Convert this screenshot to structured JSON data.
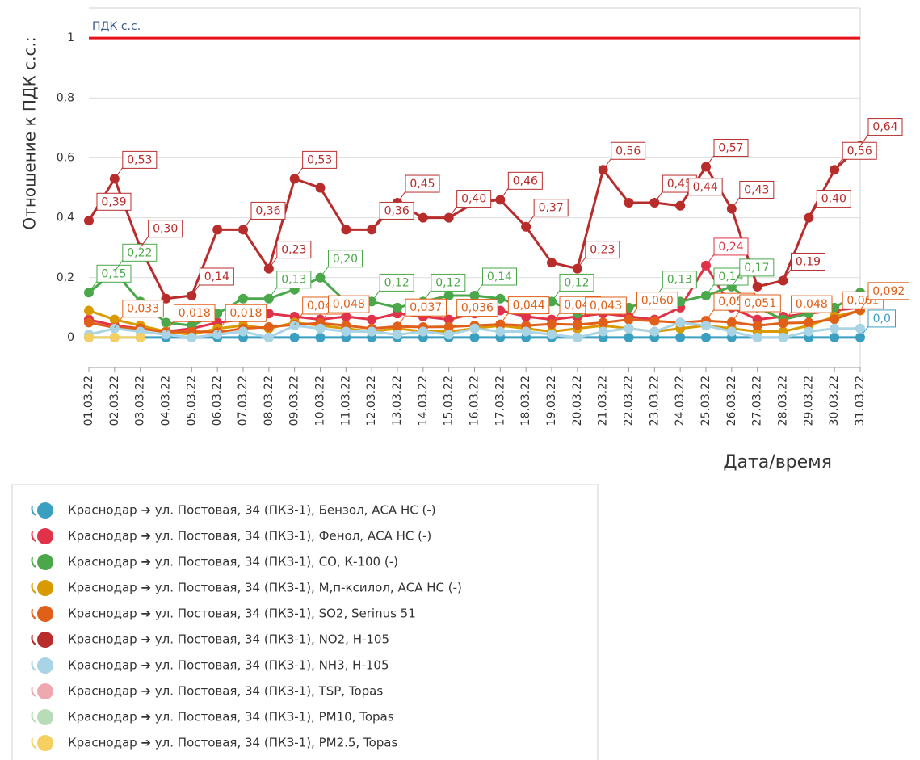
{
  "chart_data": {
    "type": "line",
    "y_label": "Отношение к ПДК с.с.:",
    "x_label": "Дата/время",
    "threshold": {
      "value": 1,
      "label": "ПДК с.с.",
      "color": "#e8101a"
    },
    "categories": [
      "01.03.22",
      "02.03.22",
      "03.03.22",
      "04.03.22",
      "05.03.22",
      "06.03.22",
      "07.03.22",
      "08.03.22",
      "09.03.22",
      "10.03.22",
      "11.03.22",
      "12.03.22",
      "13.03.22",
      "14.03.22",
      "15.03.22",
      "16.03.22",
      "17.03.22",
      "18.03.22",
      "19.03.22",
      "20.03.22",
      "21.03.22",
      "22.03.22",
      "23.03.22",
      "24.03.22",
      "25.03.22",
      "26.03.22",
      "27.03.22",
      "28.03.22",
      "29.03.22",
      "30.03.22",
      "31.03.22"
    ],
    "ylim": [
      -0.1,
      1.1
    ],
    "yticks": [
      0,
      {
        "value": 0.2,
        "label": "0,2"
      },
      {
        "value": 0.4,
        "label": "0,4"
      },
      {
        "value": 0.6,
        "label": "0,6"
      },
      {
        "value": 0.8,
        "label": "0,8"
      },
      1
    ],
    "grid": true,
    "series": [
      {
        "name": "Краснодар ➔ ул. Постовая, 34 (ПКЗ-1), Бензол, АСА НС (-)",
        "color": "#3a9fc0",
        "values": [
          0,
          0,
          0,
          0,
          0,
          0,
          0,
          0,
          0,
          0,
          0,
          0,
          0,
          0,
          0,
          0,
          0,
          0,
          0,
          0,
          0,
          0,
          0,
          0,
          0,
          0,
          0,
          0,
          0,
          0,
          0
        ],
        "value_labels": [
          null,
          null,
          null,
          null,
          null,
          null,
          null,
          null,
          null,
          null,
          null,
          null,
          null,
          null,
          null,
          null,
          null,
          null,
          null,
          null,
          null,
          null,
          null,
          null,
          null,
          null,
          null,
          null,
          null,
          null,
          "0,0"
        ]
      },
      {
        "name": "Краснодар ➔ ул. Постовая, 34 (ПКЗ-1), Фенол, АСА НС (-)",
        "color": "#e0334a",
        "values": [
          0.06,
          0.04,
          0.03,
          0.02,
          0.03,
          0.05,
          0.06,
          0.08,
          0.07,
          0.06,
          0.07,
          0.06,
          0.08,
          0.07,
          0.06,
          0.08,
          0.09,
          0.07,
          0.06,
          0.07,
          0.08,
          0.07,
          0.06,
          0.1,
          0.24,
          0.1,
          0.06,
          0.07,
          0.08,
          0.09,
          0.1
        ],
        "value_labels": [
          null,
          null,
          null,
          null,
          null,
          null,
          null,
          null,
          null,
          null,
          null,
          null,
          null,
          null,
          null,
          null,
          null,
          null,
          null,
          null,
          null,
          null,
          null,
          null,
          "0,24",
          null,
          null,
          null,
          null,
          null,
          null
        ]
      },
      {
        "name": "Краснодар ➔ ул. Постовая, 34 (ПКЗ-1), CO, К-100 (-)",
        "color": "#4aa84a",
        "values": [
          0.15,
          0.22,
          0.12,
          0.05,
          0.04,
          0.08,
          0.13,
          0.13,
          0.16,
          0.2,
          0.12,
          0.12,
          0.1,
          0.12,
          0.14,
          0.14,
          0.13,
          0.1,
          0.12,
          0.08,
          0.1,
          0.1,
          0.13,
          0.12,
          0.14,
          0.17,
          0.1,
          0.06,
          0.08,
          0.1,
          0.15
        ],
        "value_labels": [
          "0,15",
          "0,22",
          null,
          null,
          null,
          null,
          null,
          "0,13",
          null,
          "0,20",
          null,
          "0,12",
          null,
          "0,12",
          null,
          "0,14",
          null,
          null,
          "0,12",
          null,
          null,
          null,
          "0,13",
          null,
          "0,14",
          "0,17",
          null,
          null,
          null,
          null,
          null
        ]
      },
      {
        "name": "Краснодар ➔ ул. Постовая, 34 (ПКЗ-1), М,п-ксилол, АСА НС (-)",
        "color": "#d89a00",
        "values": [
          0.09,
          0.06,
          0.04,
          0.02,
          0.01,
          0.03,
          0.04,
          0.03,
          0.05,
          0.04,
          0.03,
          0.02,
          0.03,
          0.02,
          0.02,
          0.03,
          0.04,
          0.03,
          0.02,
          0.03,
          0.04,
          0.03,
          0.02,
          0.03,
          0.04,
          0.03,
          0.02,
          0.02,
          0.04,
          0.07,
          0.09
        ]
      },
      {
        "name": "Краснодар ➔ ул. Постовая, 34 (ПКЗ-1), SO2, Serinus 51",
        "color": "#e0601a",
        "values": [
          0.05,
          0.033,
          0.03,
          0.018,
          0.02,
          0.018,
          0.03,
          0.035,
          0.043,
          0.048,
          0.04,
          0.03,
          0.037,
          0.035,
          0.036,
          0.04,
          0.044,
          0.04,
          0.045,
          0.043,
          0.05,
          0.06,
          0.055,
          0.05,
          0.056,
          0.051,
          0.04,
          0.048,
          0.05,
          0.061,
          0.092
        ],
        "value_labels": [
          null,
          "0,033",
          null,
          "0,018",
          null,
          "0,018",
          null,
          null,
          "0,043",
          "0,048",
          null,
          null,
          "0,037",
          null,
          "0,036",
          null,
          "0,044",
          null,
          "0,045",
          "0,043",
          null,
          "0,060",
          null,
          null,
          "0,056",
          "0,051",
          null,
          "0,048",
          null,
          "0,061",
          "0,092"
        ]
      },
      {
        "name": "Краснодар ➔ ул. Постовая, 34 (ПКЗ-1), NO2, Н-105",
        "color": "#b82c2c",
        "values": [
          0.39,
          0.53,
          0.3,
          0.13,
          0.14,
          0.36,
          0.36,
          0.23,
          0.53,
          0.5,
          0.36,
          0.36,
          0.45,
          0.4,
          0.4,
          0.45,
          0.46,
          0.37,
          0.25,
          0.23,
          0.56,
          0.45,
          0.45,
          0.44,
          0.57,
          0.43,
          0.17,
          0.19,
          0.4,
          0.56,
          0.64
        ],
        "value_labels": [
          "0,39",
          "0,53",
          "0,30",
          null,
          "0,14",
          null,
          "0,36",
          "0,23",
          "0,53",
          null,
          null,
          "0,36",
          "0,45",
          null,
          "0,40",
          null,
          "0,46",
          "0,37",
          null,
          "0,23",
          "0,56",
          null,
          "0,45",
          "0,44",
          "0,57",
          "0,43",
          null,
          "0,19",
          "0,40",
          "0,56",
          "0,64"
        ]
      },
      {
        "name": "Краснодар ➔ ул. Постовая, 34 (ПКЗ-1), NH3, Н-105",
        "color": "#a8d4e6",
        "values": [
          0.01,
          0.03,
          0.02,
          0.01,
          0,
          0.01,
          0.02,
          0,
          0.04,
          0.03,
          0.02,
          0.02,
          0.01,
          0.02,
          0.01,
          0.03,
          0.02,
          0.02,
          0.01,
          0,
          0.02,
          0.03,
          0.02,
          0.05,
          0.04,
          0.02,
          0,
          0,
          0.02,
          0.03,
          0.03
        ]
      },
      {
        "name": "Краснодар ➔ ул. Постовая, 34 (ПКЗ-1), TSP, Topas",
        "color": "#f0a8b0",
        "values": [
          null,
          null,
          null,
          null,
          null,
          null,
          null,
          null,
          null,
          null,
          null,
          null,
          null,
          null,
          null,
          null,
          null,
          null,
          null,
          null,
          null,
          null,
          null,
          null,
          null,
          null,
          null,
          null,
          null,
          null,
          null
        ]
      },
      {
        "name": "Краснодар ➔ ул. Постовая, 34 (ПКЗ-1), PM10, Topas",
        "color": "#b8dcb8",
        "values": [
          null,
          null,
          null,
          null,
          null,
          null,
          null,
          null,
          null,
          null,
          null,
          null,
          null,
          null,
          null,
          null,
          null,
          null,
          null,
          null,
          null,
          null,
          null,
          null,
          null,
          null,
          null,
          null,
          null,
          null,
          null
        ]
      },
      {
        "name": "Краснодар ➔ ул. Постовая, 34 (ПКЗ-1), PM2.5, Topas",
        "color": "#f5d060",
        "values": [
          0,
          0,
          0,
          null,
          null,
          null,
          null,
          null,
          null,
          null,
          null,
          null,
          null,
          null,
          null,
          null,
          null,
          null,
          null,
          null,
          null,
          null,
          null,
          null,
          null,
          null,
          null,
          null,
          null,
          null,
          null
        ]
      }
    ]
  }
}
